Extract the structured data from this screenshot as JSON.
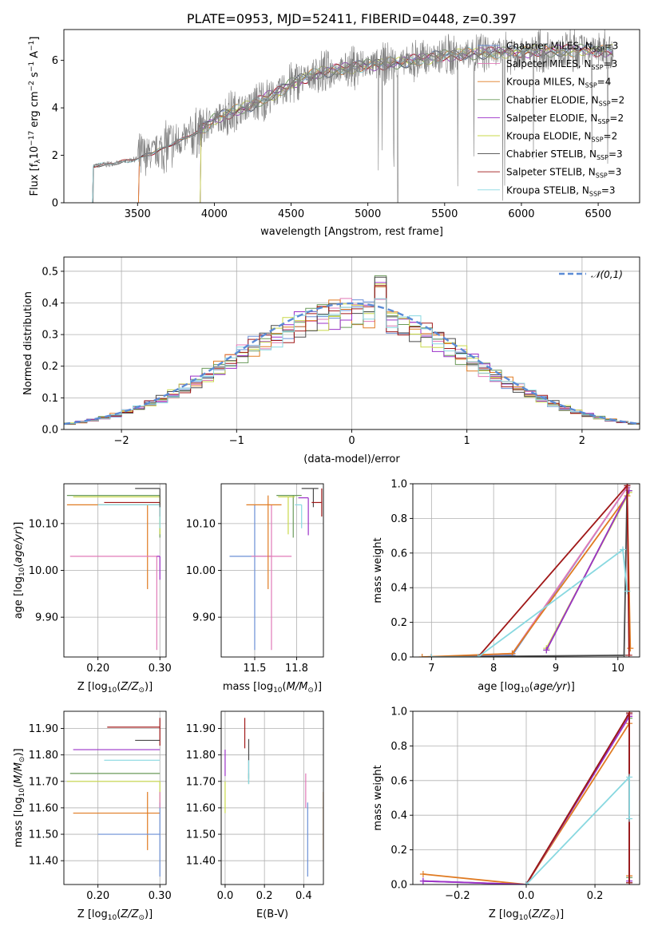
{
  "chart_data": [
    {
      "id": "spectrum",
      "type": "line",
      "title": "PLATE=0953, MJD=52411, FIBERID=0448, z=0.397",
      "xlabel": "wavelength [Angstrom, rest frame]",
      "ylabel": "Flux [f_λ 10^-17 erg cm^-2 s^-1 A^-1]",
      "xlim": [
        3020,
        6770
      ],
      "ylim": [
        0,
        7.3
      ],
      "xticks": [
        3500,
        4000,
        4500,
        5000,
        5500,
        6000,
        6500
      ],
      "yticks": [
        0,
        2,
        4,
        6
      ],
      "grid": false,
      "legend_position": "top-right",
      "continuum_knots": {
        "x": [
          3200,
          3300,
          3400,
          3500,
          3600,
          3700,
          3800,
          3900,
          4000,
          4100,
          4200,
          4300,
          4400,
          4500,
          4600,
          4700,
          4800,
          4900,
          5000,
          5100,
          5200,
          5300,
          5400,
          5500,
          5600,
          5700,
          5800,
          5900,
          6000,
          6100,
          6200,
          6300,
          6400,
          6500,
          6600
        ],
        "y": [
          1.55,
          1.62,
          1.72,
          1.85,
          2.1,
          2.4,
          2.7,
          3.0,
          3.5,
          3.8,
          4.0,
          4.3,
          4.6,
          5.0,
          5.3,
          5.5,
          5.6,
          5.7,
          5.8,
          5.85,
          5.9,
          6.0,
          6.1,
          6.2,
          6.25,
          6.3,
          6.3,
          6.35,
          6.35,
          6.4,
          6.4,
          6.4,
          6.45,
          6.4,
          6.4
        ]
      },
      "series": [
        {
          "name": "Chabrier MILES, N_SSP=3",
          "color": "#6b8fd6",
          "x_start": 3500
        },
        {
          "name": "Salpeter MILES, N_SSP=3",
          "color": "#e07ab8",
          "x_start": 3500
        },
        {
          "name": "Kroupa MILES, N_SSP=4",
          "color": "#e07b22",
          "x_start": 3500
        },
        {
          "name": "Chabrier ELODIE, N_SSP=2",
          "color": "#6a9a5a",
          "x_start": 3900
        },
        {
          "name": "Salpeter ELODIE, N_SSP=2",
          "color": "#9b30c8",
          "x_start": 3900
        },
        {
          "name": "Kroupa ELODIE, N_SSP=2",
          "color": "#c9d94a",
          "x_start": 3900
        },
        {
          "name": "Chabrier STELIB, N_SSP=3",
          "color": "#4a4a4a",
          "x_start": 3200
        },
        {
          "name": "Salpeter STELIB, N_SSP=3",
          "color": "#a01818",
          "x_start": 3200
        },
        {
          "name": "Kroupa STELIB, N_SSP=3",
          "color": "#88d8e0",
          "x_start": 3200
        }
      ]
    },
    {
      "id": "residuals",
      "type": "histogram",
      "xlabel": "(data-model)/error",
      "ylabel": "Normed distribution",
      "xlim": [
        -2.5,
        2.5
      ],
      "ylim": [
        0,
        0.545
      ],
      "xticks": [
        -2,
        -1,
        0,
        1,
        2
      ],
      "yticks": [
        0.0,
        0.1,
        0.2,
        0.3,
        0.4,
        0.5
      ],
      "grid": true,
      "legend_position": "top-right",
      "legend_label": "𝒩(0,1)",
      "reference_curve": {
        "name": "𝒩(0,1)",
        "color": "#5b8bd6",
        "style": "dashed"
      }
    },
    {
      "id": "age_vs_Z",
      "type": "errorbar",
      "xlabel": "Z [log10(Z/Z☉)]",
      "ylabel": "age  [log10(age/yr)]",
      "xlim": [
        0.145,
        0.31
      ],
      "ylim": [
        9.815,
        10.185
      ],
      "xticks": [
        0.2,
        0.3
      ],
      "yticks": [
        9.9,
        10.0,
        10.1
      ],
      "grid": true,
      "points": [
        {
          "color": "#6a9a5a",
          "x": 0.3,
          "xerr": [
            0.15,
            0
          ],
          "y": 10.16,
          "yerr": [
            0.09,
            0
          ]
        },
        {
          "color": "#c9d94a",
          "x": 0.3,
          "xerr": [
            0.14,
            0
          ],
          "y": 10.157,
          "yerr": [
            0.08,
            0
          ]
        },
        {
          "color": "#e07b22",
          "x": 0.28,
          "xerr": [
            0.13,
            0.02
          ],
          "y": 10.14,
          "yerr": [
            0.18,
            0
          ]
        },
        {
          "color": "#a01818",
          "x": 0.3,
          "xerr": [
            0.09,
            0
          ],
          "y": 10.145,
          "yerr": [
            0.03,
            0
          ]
        },
        {
          "color": "#88d8e0",
          "x": 0.3,
          "xerr": [
            0.1,
            0
          ],
          "y": 10.14,
          "yerr": [
            0.05,
            0
          ]
        },
        {
          "color": "#4a4a4a",
          "x": 0.3,
          "xerr": [
            0.04,
            0
          ],
          "y": 10.175,
          "yerr": [
            0.04,
            0
          ]
        },
        {
          "color": "#e07ab8",
          "x": 0.295,
          "xerr": [
            0.14,
            0.005
          ],
          "y": 10.03,
          "yerr": [
            0.2,
            0
          ]
        },
        {
          "color": "#9b30c8",
          "x": 0.3,
          "xerr": [
            0.005,
            0
          ],
          "y": 10.03,
          "yerr": [
            0.05,
            0
          ]
        }
      ]
    },
    {
      "id": "age_vs_mass",
      "type": "errorbar",
      "xlabel": "mass [log10(M/M☉)]",
      "ylabel": "",
      "xlim": [
        11.3,
        11.91
      ],
      "ylim": [
        9.815,
        10.185
      ],
      "xticks": [
        11.5,
        11.75
      ],
      "yticks": [
        9.9,
        10.0,
        10.1
      ],
      "grid": true,
      "points": [
        {
          "color": "#6b8fd6",
          "x": 11.5,
          "xerr": [
            0.15,
            0.1
          ],
          "y": 10.03,
          "yerr": [
            0.2,
            0.11
          ]
        },
        {
          "color": "#e07ab8",
          "x": 11.6,
          "xerr": [
            0.12,
            0.12
          ],
          "y": 10.03,
          "yerr": [
            0.2,
            0.11
          ]
        },
        {
          "color": "#e07b22",
          "x": 11.58,
          "xerr": [
            0.13,
            0.08
          ],
          "y": 10.14,
          "yerr": [
            0.18,
            0.02
          ]
        },
        {
          "color": "#6a9a5a",
          "x": 11.73,
          "xerr": [
            0.1,
            0.05
          ],
          "y": 10.16,
          "yerr": [
            0.09,
            0.0
          ]
        },
        {
          "color": "#c9d94a",
          "x": 11.7,
          "xerr": [
            0.06,
            0.04
          ],
          "y": 10.157,
          "yerr": [
            0.08,
            0.0
          ]
        },
        {
          "color": "#9b30c8",
          "x": 11.82,
          "xerr": [
            0.06,
            0.0
          ],
          "y": 10.155,
          "yerr": [
            0.08,
            0.0
          ]
        },
        {
          "color": "#88d8e0",
          "x": 11.78,
          "xerr": [
            0.04,
            0.0
          ],
          "y": 10.14,
          "yerr": [
            0.05,
            0.0
          ]
        },
        {
          "color": "#4a4a4a",
          "x": 11.85,
          "xerr": [
            0.07,
            0.03
          ],
          "y": 10.175,
          "yerr": [
            0.04,
            0.0
          ]
        },
        {
          "color": "#a01818",
          "x": 11.9,
          "xerr": [
            0.06,
            0.0
          ],
          "y": 10.145,
          "yerr": [
            0.03,
            0.03
          ]
        }
      ]
    },
    {
      "id": "massweight_vs_age",
      "type": "line",
      "xlabel": "age  [log10(age/yr)]",
      "ylabel": "mass weight",
      "xlim": [
        6.7,
        10.35
      ],
      "ylim": [
        0,
        1
      ],
      "xticks": [
        7,
        8,
        9,
        10
      ],
      "yticks": [
        0.0,
        0.2,
        0.4,
        0.6,
        0.8,
        1.0
      ],
      "grid": true,
      "series": [
        {
          "color": "#6b8fd6",
          "x": [
            7.0,
            8.3,
            10.15
          ],
          "y": [
            0.0,
            0.01,
            0.98
          ]
        },
        {
          "color": "#e07ab8",
          "x": [
            7.0,
            8.3,
            10.15
          ],
          "y": [
            0.0,
            0.02,
            0.98
          ]
        },
        {
          "color": "#e07b22",
          "x": [
            6.85,
            8.3,
            10.15,
            10.2
          ],
          "y": [
            0.0,
            0.02,
            0.93,
            0.05
          ]
        },
        {
          "color": "#6a9a5a",
          "x": [
            8.85,
            10.18
          ],
          "y": [
            0.04,
            0.96
          ]
        },
        {
          "color": "#c9d94a",
          "x": [
            8.85,
            10.18
          ],
          "y": [
            0.05,
            0.95
          ]
        },
        {
          "color": "#9b30c8",
          "x": [
            8.85,
            10.18
          ],
          "y": [
            0.04,
            0.96
          ]
        },
        {
          "color": "#4a4a4a",
          "x": [
            7.0,
            10.1,
            10.15
          ],
          "y": [
            0.0,
            0.01,
            0.99
          ]
        },
        {
          "color": "#a01818",
          "x": [
            7.0,
            7.75,
            10.15,
            10.18
          ],
          "y": [
            0.0,
            0.0,
            0.99,
            0.01
          ]
        },
        {
          "color": "#88d8e0",
          "x": [
            7.0,
            7.75,
            10.08,
            10.15
          ],
          "y": [
            0.0,
            0.0,
            0.62,
            0.38
          ]
        }
      ]
    },
    {
      "id": "mass_vs_Z",
      "type": "errorbar",
      "xlabel": "Z [log10(Z/Z☉)]",
      "ylabel": "mass [log10(M/M☉)]",
      "xlim": [
        0.145,
        0.31
      ],
      "ylim": [
        11.31,
        11.965
      ],
      "xticks": [
        0.2,
        0.3
      ],
      "yticks": [
        11.4,
        11.5,
        11.6,
        11.7,
        11.8,
        11.9
      ],
      "grid": true,
      "points": [
        {
          "color": "#a01818",
          "x": 0.3,
          "xerr": [
            0.085,
            0
          ],
          "y": 11.905,
          "yerr": [
            0.07,
            0.035
          ]
        },
        {
          "color": "#4a4a4a",
          "x": 0.3,
          "xerr": [
            0.04,
            0
          ],
          "y": 11.855,
          "yerr": [
            0.0,
            0.0
          ]
        },
        {
          "color": "#9b30c8",
          "x": 0.3,
          "xerr": [
            0.14,
            0
          ],
          "y": 11.82,
          "yerr": [
            0.0,
            0.0
          ]
        },
        {
          "color": "#88d8e0",
          "x": 0.3,
          "xerr": [
            0.09,
            0
          ],
          "y": 11.78,
          "yerr": [
            0.0,
            0.0
          ]
        },
        {
          "color": "#6a9a5a",
          "x": 0.3,
          "xerr": [
            0.145,
            0
          ],
          "y": 11.73,
          "yerr": [
            0.0,
            0.0
          ]
        },
        {
          "color": "#c9d94a",
          "x": 0.3,
          "xerr": [
            0.15,
            0
          ],
          "y": 11.7,
          "yerr": [
            0.1,
            0.0
          ]
        },
        {
          "color": "#e07b22",
          "x": 0.3,
          "xerr": [
            0.14,
            0
          ],
          "y": 11.58,
          "yerr": [
            0.0,
            0.0
          ]
        },
        {
          "color": "#e07b22",
          "x": 0.28,
          "xerr": [
            0.0,
            0
          ],
          "y": 11.58,
          "yerr": [
            0.14,
            0.08
          ]
        },
        {
          "color": "#6b8fd6",
          "x": 0.3,
          "xerr": [
            0.1,
            0
          ],
          "y": 11.5,
          "yerr": [
            0.16,
            0.12
          ]
        },
        {
          "color": "#e07ab8",
          "x": 0.3,
          "xerr": [
            0.0,
            0
          ],
          "y": 11.6,
          "yerr": [
            0.0,
            0.06
          ]
        }
      ]
    },
    {
      "id": "mass_vs_EBV",
      "type": "errorbar",
      "xlabel": "E(B-V)",
      "ylabel": "",
      "xlim": [
        -0.02,
        0.5
      ],
      "ylim": [
        11.31,
        11.965
      ],
      "xticks": [
        0.0,
        0.2,
        0.4
      ],
      "yticks": [
        11.4,
        11.5,
        11.6,
        11.7,
        11.8,
        11.9
      ],
      "grid": true,
      "points": [
        {
          "color": "#9b30c8",
          "x": 0.0,
          "y": 11.82,
          "yerr": [
            0.1,
            0.0
          ]
        },
        {
          "color": "#c9d94a",
          "x": 0.0,
          "y": 11.7,
          "yerr": [
            0.12,
            0.0
          ]
        },
        {
          "color": "#a01818",
          "x": 0.1,
          "y": 11.905,
          "yerr": [
            0.08,
            0.035
          ]
        },
        {
          "color": "#6a9a5a",
          "x": 0.12,
          "y": 11.73,
          "yerr": [
            0.04,
            0.0
          ]
        },
        {
          "color": "#4a4a4a",
          "x": 0.12,
          "y": 11.86,
          "yerr": [
            0.15,
            0.0
          ]
        },
        {
          "color": "#88d8e0",
          "x": 0.12,
          "y": 11.78,
          "yerr": [
            0.09,
            0.0
          ]
        },
        {
          "color": "#e07ab8",
          "x": 0.41,
          "y": 11.6,
          "yerr": [
            0.0,
            0.13
          ]
        },
        {
          "color": "#6b8fd6",
          "x": 0.42,
          "y": 11.5,
          "yerr": [
            0.16,
            0.12
          ]
        },
        {
          "color": "#e07b22",
          "x": 0.5,
          "y": 11.58,
          "yerr": [
            0.14,
            0.08
          ]
        }
      ]
    },
    {
      "id": "massweight_vs_Z",
      "type": "line",
      "xlabel": "Z [log10(Z/Z☉)]",
      "ylabel": "mass weight",
      "xlim": [
        -0.33,
        0.33
      ],
      "ylim": [
        0,
        1
      ],
      "xticks": [
        -0.2,
        0.0,
        0.2
      ],
      "yticks": [
        0.0,
        0.2,
        0.4,
        0.6,
        0.8,
        1.0
      ],
      "grid": true,
      "series": [
        {
          "color": "#6b8fd6",
          "x": [
            -0.3,
            0.0,
            0.3
          ],
          "y": [
            0.02,
            0.0,
            0.98
          ]
        },
        {
          "color": "#e07ab8",
          "x": [
            -0.3,
            0.0,
            0.3
          ],
          "y": [
            0.02,
            0.0,
            0.98
          ]
        },
        {
          "color": "#e07b22",
          "x": [
            -0.3,
            0.0,
            0.3,
            0.3
          ],
          "y": [
            0.06,
            0.0,
            0.93,
            0.05
          ]
        },
        {
          "color": "#6a9a5a",
          "x": [
            0.3,
            0.3
          ],
          "y": [
            0.04,
            0.96
          ]
        },
        {
          "color": "#9b30c8",
          "x": [
            -0.3,
            0.0,
            0.3,
            0.3
          ],
          "y": [
            0.02,
            0.0,
            0.97,
            0.02
          ]
        },
        {
          "color": "#4a4a4a",
          "x": [
            0.0,
            0.3,
            0.3
          ],
          "y": [
            0.0,
            0.99,
            0.01
          ]
        },
        {
          "color": "#a01818",
          "x": [
            0.0,
            0.3,
            0.3
          ],
          "y": [
            0.0,
            0.99,
            0.01
          ]
        },
        {
          "color": "#88d8e0",
          "x": [
            0.0,
            0.3,
            0.3
          ],
          "y": [
            0.0,
            0.62,
            0.38
          ]
        }
      ]
    }
  ]
}
